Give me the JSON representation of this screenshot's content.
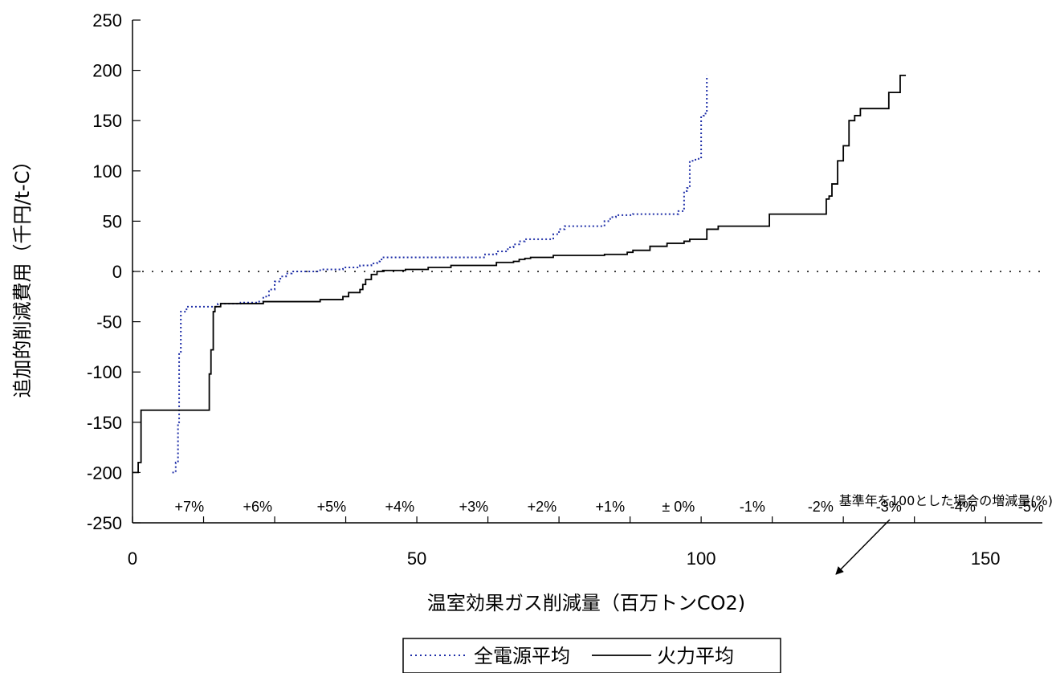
{
  "chart_data": {
    "type": "line",
    "title": "",
    "xlabel": "温室効果ガス削減量（百万トンCO2)",
    "ylabel": "追加的削減費用（千円/t-C）",
    "xlim": [
      0,
      160
    ],
    "ylim": [
      -250,
      250
    ],
    "x_ticks": [
      0,
      50,
      100,
      150
    ],
    "y_ticks": [
      250,
      200,
      150,
      100,
      50,
      0,
      -50,
      -100,
      -150,
      -200,
      -250
    ],
    "grid": false,
    "legend_position": "bottom",
    "reference_line": {
      "y": 0,
      "style": "dotted"
    },
    "annotation": {
      "text": "基準年を100とした場合の増減量(%)",
      "points_to": [
        122,
        -207
      ]
    },
    "percent_labels": [
      {
        "x": 10,
        "label": "+7%"
      },
      {
        "x": 22,
        "label": "+6%"
      },
      {
        "x": 35,
        "label": "+5%"
      },
      {
        "x": 47,
        "label": "+4%"
      },
      {
        "x": 60,
        "label": "+3%"
      },
      {
        "x": 72,
        "label": "+2%"
      },
      {
        "x": 84,
        "label": "+1%"
      },
      {
        "x": 96,
        "label": "± 0%"
      },
      {
        "x": 109,
        "label": "-1%"
      },
      {
        "x": 121,
        "label": "-2%"
      },
      {
        "x": 133,
        "label": "-3%"
      },
      {
        "x": 146,
        "label": "-4%"
      },
      {
        "x": 158,
        "label": "-5%"
      }
    ],
    "series": [
      {
        "name": "全電源平均",
        "style": "dotted",
        "color": "#1f2fa8",
        "step": true,
        "x": [
          7,
          7.6,
          8,
          8.2,
          8.5,
          9.5,
          15,
          19,
          22,
          23,
          24,
          25,
          26,
          27,
          28,
          33,
          37,
          40,
          42,
          43,
          43.5,
          44,
          62,
          64,
          66,
          67,
          68,
          69,
          74,
          75,
          76,
          83,
          84,
          85,
          88,
          96,
          97,
          97.5,
          98,
          99,
          100,
          100.5,
          101
        ],
        "values": [
          -200,
          -190,
          -150,
          -80,
          -40,
          -35,
          -32,
          -31,
          -30,
          -25,
          -18,
          -10,
          -5,
          -2,
          0,
          2,
          4,
          6,
          8,
          10,
          12,
          14,
          17,
          20,
          24,
          27,
          30,
          32,
          37,
          42,
          45,
          50,
          54,
          56,
          57,
          60,
          80,
          83,
          110,
          112,
          155,
          157,
          195
        ]
      },
      {
        "name": "火力平均",
        "style": "solid",
        "color": "#000000",
        "step": true,
        "x": [
          0,
          1,
          1.5,
          13.5,
          13.8,
          14.2,
          14.5,
          15.5,
          23,
          33,
          37,
          38,
          40,
          40.5,
          41,
          42,
          43,
          44,
          48,
          52,
          56,
          64,
          67,
          68,
          69,
          70,
          74,
          83,
          87,
          88,
          91,
          94,
          97,
          98,
          101,
          103,
          112,
          122,
          122.5,
          123,
          124,
          125,
          126,
          127,
          128,
          133,
          135,
          136
        ],
        "values": [
          -200,
          -190,
          -138,
          -102,
          -78,
          -40,
          -35,
          -32,
          -30,
          -28,
          -25,
          -21,
          -18,
          -13,
          -8,
          -3,
          0,
          1,
          2,
          4,
          6,
          9,
          10,
          12,
          13,
          14,
          16,
          17,
          19,
          21,
          25,
          28,
          30,
          32,
          42,
          45,
          57,
          72,
          75,
          87,
          110,
          125,
          150,
          155,
          162,
          178,
          195,
          195
        ]
      }
    ]
  }
}
